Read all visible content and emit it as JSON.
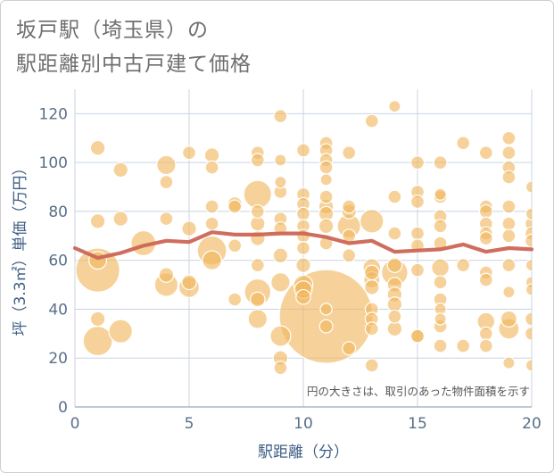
{
  "header": {
    "title_line1": "坂戸駅（埼玉県）の",
    "title_line2": "駅距離別中古戸建て価格"
  },
  "chart_data": {
    "type": "scatter",
    "xlabel": "駅距離（分）",
    "ylabel": "坪（3.3㎡）単価（万円）",
    "xlim": [
      0,
      20
    ],
    "ylim": [
      0,
      130
    ],
    "xticks": [
      0,
      5,
      10,
      15,
      20
    ],
    "yticks": [
      0,
      20,
      40,
      60,
      80,
      100,
      120
    ],
    "grid": true,
    "note": "円の大きさは、取引のあった物件面積を示す",
    "bubble_color": "#f1b75c",
    "line_color": "#cc6655",
    "points": [
      {
        "x": 1,
        "y": 106,
        "s": 1
      },
      {
        "x": 1,
        "y": 76,
        "s": 1
      },
      {
        "x": 1,
        "y": 60,
        "s": 1.2
      },
      {
        "x": 1,
        "y": 56,
        "s": 3
      },
      {
        "x": 1,
        "y": 36,
        "s": 1
      },
      {
        "x": 1,
        "y": 27,
        "s": 2
      },
      {
        "x": 2,
        "y": 97,
        "s": 1
      },
      {
        "x": 2,
        "y": 77,
        "s": 1
      },
      {
        "x": 2,
        "y": 31,
        "s": 1.6
      },
      {
        "x": 3,
        "y": 67,
        "s": 1.7
      },
      {
        "x": 4,
        "y": 99,
        "s": 1.3
      },
      {
        "x": 4,
        "y": 92,
        "s": 0.9
      },
      {
        "x": 4,
        "y": 77,
        "s": 0.9
      },
      {
        "x": 4,
        "y": 54,
        "s": 1
      },
      {
        "x": 4,
        "y": 50,
        "s": 1.6
      },
      {
        "x": 5,
        "y": 104,
        "s": 0.9
      },
      {
        "x": 5,
        "y": 73,
        "s": 1
      },
      {
        "x": 5,
        "y": 51,
        "s": 1
      },
      {
        "x": 5,
        "y": 49,
        "s": 1.4
      },
      {
        "x": 6,
        "y": 103,
        "s": 1
      },
      {
        "x": 6,
        "y": 98,
        "s": 0.9
      },
      {
        "x": 6,
        "y": 82,
        "s": 0.9
      },
      {
        "x": 6,
        "y": 75,
        "s": 0.9
      },
      {
        "x": 6,
        "y": 64,
        "s": 2
      },
      {
        "x": 6,
        "y": 60,
        "s": 1.3
      },
      {
        "x": 7,
        "y": 83,
        "s": 1
      },
      {
        "x": 7,
        "y": 82,
        "s": 0.9
      },
      {
        "x": 7,
        "y": 66,
        "s": 0.9
      },
      {
        "x": 7,
        "y": 44,
        "s": 0.9
      },
      {
        "x": 8,
        "y": 104,
        "s": 0.9
      },
      {
        "x": 8,
        "y": 101,
        "s": 0.9
      },
      {
        "x": 8,
        "y": 87,
        "s": 1.9
      },
      {
        "x": 8,
        "y": 80,
        "s": 0.9
      },
      {
        "x": 8,
        "y": 75,
        "s": 1
      },
      {
        "x": 8,
        "y": 69,
        "s": 1
      },
      {
        "x": 8,
        "y": 58,
        "s": 0.9
      },
      {
        "x": 8,
        "y": 47,
        "s": 1.8
      },
      {
        "x": 8,
        "y": 44,
        "s": 1
      },
      {
        "x": 8,
        "y": 36,
        "s": 1.3
      },
      {
        "x": 9,
        "y": 119,
        "s": 0.9
      },
      {
        "x": 9,
        "y": 101,
        "s": 0.8
      },
      {
        "x": 9,
        "y": 92,
        "s": 0.8
      },
      {
        "x": 9,
        "y": 88,
        "s": 0.9
      },
      {
        "x": 9,
        "y": 77,
        "s": 0.9
      },
      {
        "x": 9,
        "y": 73,
        "s": 0.9
      },
      {
        "x": 9,
        "y": 62,
        "s": 1
      },
      {
        "x": 9,
        "y": 51,
        "s": 1.3
      },
      {
        "x": 9,
        "y": 29,
        "s": 1.4
      },
      {
        "x": 9,
        "y": 20,
        "s": 1
      },
      {
        "x": 9,
        "y": 16,
        "s": 0.9
      },
      {
        "x": 10,
        "y": 105,
        "s": 0.9
      },
      {
        "x": 10,
        "y": 87,
        "s": 0.9
      },
      {
        "x": 10,
        "y": 83,
        "s": 0.9
      },
      {
        "x": 10,
        "y": 79,
        "s": 0.9
      },
      {
        "x": 10,
        "y": 74,
        "s": 0.9
      },
      {
        "x": 10,
        "y": 70,
        "s": 0.9
      },
      {
        "x": 10,
        "y": 65,
        "s": 0.9
      },
      {
        "x": 10,
        "y": 58,
        "s": 1
      },
      {
        "x": 10,
        "y": 50,
        "s": 1.3
      },
      {
        "x": 10,
        "y": 48,
        "s": 1.2
      },
      {
        "x": 10,
        "y": 45,
        "s": 1
      },
      {
        "x": 11,
        "y": 108,
        "s": 0.9
      },
      {
        "x": 11,
        "y": 105,
        "s": 0.9
      },
      {
        "x": 11,
        "y": 101,
        "s": 0.9
      },
      {
        "x": 11,
        "y": 98,
        "s": 0.9
      },
      {
        "x": 11,
        "y": 93,
        "s": 0.8
      },
      {
        "x": 11,
        "y": 86,
        "s": 0.9
      },
      {
        "x": 11,
        "y": 82,
        "s": 1
      },
      {
        "x": 11,
        "y": 79,
        "s": 1
      },
      {
        "x": 11,
        "y": 74,
        "s": 1
      },
      {
        "x": 11,
        "y": 67,
        "s": 0.9
      },
      {
        "x": 11,
        "y": 40,
        "s": 0.8
      },
      {
        "x": 11,
        "y": 37,
        "s": 6.4
      },
      {
        "x": 11,
        "y": 33,
        "s": 0.9
      },
      {
        "x": 12,
        "y": 104,
        "s": 0.9
      },
      {
        "x": 12,
        "y": 82,
        "s": 0.9
      },
      {
        "x": 12,
        "y": 80,
        "s": 1
      },
      {
        "x": 12,
        "y": 74,
        "s": 1.6
      },
      {
        "x": 12,
        "y": 70,
        "s": 0.9
      },
      {
        "x": 12,
        "y": 62,
        "s": 0.9
      },
      {
        "x": 12,
        "y": 24,
        "s": 0.9
      },
      {
        "x": 13,
        "y": 117,
        "s": 0.9
      },
      {
        "x": 13,
        "y": 76,
        "s": 1.6
      },
      {
        "x": 13,
        "y": 57,
        "s": 1.2
      },
      {
        "x": 13,
        "y": 55,
        "s": 1
      },
      {
        "x": 13,
        "y": 52,
        "s": 1.1
      },
      {
        "x": 13,
        "y": 49,
        "s": 1
      },
      {
        "x": 13,
        "y": 40,
        "s": 0.9
      },
      {
        "x": 13,
        "y": 36,
        "s": 0.9
      },
      {
        "x": 13,
        "y": 32,
        "s": 0.9
      },
      {
        "x": 13,
        "y": 17,
        "s": 0.9
      },
      {
        "x": 14,
        "y": 123,
        "s": 0.8
      },
      {
        "x": 14,
        "y": 86,
        "s": 0.9
      },
      {
        "x": 14,
        "y": 71,
        "s": 0.9
      },
      {
        "x": 14,
        "y": 58,
        "s": 1
      },
      {
        "x": 14,
        "y": 55,
        "s": 1.8
      },
      {
        "x": 14,
        "y": 50,
        "s": 1
      },
      {
        "x": 14,
        "y": 46,
        "s": 1
      },
      {
        "x": 14,
        "y": 42,
        "s": 1
      },
      {
        "x": 14,
        "y": 37,
        "s": 0.9
      },
      {
        "x": 14,
        "y": 32,
        "s": 1
      },
      {
        "x": 15,
        "y": 100,
        "s": 0.9
      },
      {
        "x": 15,
        "y": 88,
        "s": 0.9
      },
      {
        "x": 15,
        "y": 84,
        "s": 0.9
      },
      {
        "x": 15,
        "y": 71,
        "s": 0.9
      },
      {
        "x": 15,
        "y": 66,
        "s": 0.9
      },
      {
        "x": 15,
        "y": 56,
        "s": 0.9
      },
      {
        "x": 15,
        "y": 29,
        "s": 0.9
      },
      {
        "x": 15,
        "y": 29,
        "s": 0.9
      },
      {
        "x": 16,
        "y": 100,
        "s": 0.9
      },
      {
        "x": 16,
        "y": 87,
        "s": 0.8
      },
      {
        "x": 16,
        "y": 86,
        "s": 0.9
      },
      {
        "x": 16,
        "y": 78,
        "s": 0.9
      },
      {
        "x": 16,
        "y": 74,
        "s": 0.9
      },
      {
        "x": 16,
        "y": 67,
        "s": 0.9
      },
      {
        "x": 16,
        "y": 57,
        "s": 1.2
      },
      {
        "x": 16,
        "y": 51,
        "s": 0.9
      },
      {
        "x": 16,
        "y": 44,
        "s": 0.9
      },
      {
        "x": 16,
        "y": 40,
        "s": 0.8
      },
      {
        "x": 16,
        "y": 36,
        "s": 0.8
      },
      {
        "x": 16,
        "y": 33,
        "s": 0.9
      },
      {
        "x": 16,
        "y": 25,
        "s": 0.9
      },
      {
        "x": 17,
        "y": 108,
        "s": 0.9
      },
      {
        "x": 17,
        "y": 58,
        "s": 0.9
      },
      {
        "x": 17,
        "y": 25,
        "s": 0.9
      },
      {
        "x": 18,
        "y": 104,
        "s": 0.9
      },
      {
        "x": 18,
        "y": 82,
        "s": 0.9
      },
      {
        "x": 18,
        "y": 80,
        "s": 0.9
      },
      {
        "x": 18,
        "y": 75,
        "s": 0.9
      },
      {
        "x": 18,
        "y": 71,
        "s": 0.9
      },
      {
        "x": 18,
        "y": 69,
        "s": 0.9
      },
      {
        "x": 18,
        "y": 55,
        "s": 0.9
      },
      {
        "x": 18,
        "y": 52,
        "s": 0.9
      },
      {
        "x": 18,
        "y": 35,
        "s": 1.2
      },
      {
        "x": 18,
        "y": 30,
        "s": 0.9
      },
      {
        "x": 18,
        "y": 25,
        "s": 0.9
      },
      {
        "x": 19,
        "y": 110,
        "s": 0.9
      },
      {
        "x": 19,
        "y": 104,
        "s": 0.9
      },
      {
        "x": 19,
        "y": 98,
        "s": 0.9
      },
      {
        "x": 19,
        "y": 94,
        "s": 0.9
      },
      {
        "x": 19,
        "y": 82,
        "s": 0.9
      },
      {
        "x": 19,
        "y": 75,
        "s": 0.9
      },
      {
        "x": 19,
        "y": 70,
        "s": 0.9
      },
      {
        "x": 19,
        "y": 58,
        "s": 0.9
      },
      {
        "x": 19,
        "y": 47,
        "s": 0.8
      },
      {
        "x": 19,
        "y": 36,
        "s": 1.1
      },
      {
        "x": 19,
        "y": 32,
        "s": 1.4
      },
      {
        "x": 19,
        "y": 18,
        "s": 0.8
      },
      {
        "x": 20,
        "y": 90,
        "s": 0.8
      },
      {
        "x": 20,
        "y": 79,
        "s": 0.8
      },
      {
        "x": 20,
        "y": 75,
        "s": 0.9
      },
      {
        "x": 20,
        "y": 71,
        "s": 0.9
      },
      {
        "x": 20,
        "y": 68,
        "s": 0.9
      },
      {
        "x": 20,
        "y": 58,
        "s": 0.8
      },
      {
        "x": 20,
        "y": 51,
        "s": 0.8
      },
      {
        "x": 20,
        "y": 48,
        "s": 0.8
      },
      {
        "x": 20,
        "y": 36,
        "s": 0.9
      },
      {
        "x": 20,
        "y": 30,
        "s": 0.9
      },
      {
        "x": 20,
        "y": 17,
        "s": 0.8
      }
    ],
    "trend": {
      "x": [
        0,
        1,
        2,
        3,
        4,
        5,
        6,
        7,
        8,
        9,
        10,
        11,
        12,
        13,
        14,
        15,
        16,
        17,
        18,
        19,
        20
      ],
      "y": [
        65,
        61,
        63,
        66,
        68,
        67.5,
        71.5,
        70.5,
        70.5,
        71,
        71,
        69.5,
        67,
        68,
        63.5,
        64,
        64.5,
        66.5,
        63.5,
        65,
        64.5
      ]
    }
  }
}
